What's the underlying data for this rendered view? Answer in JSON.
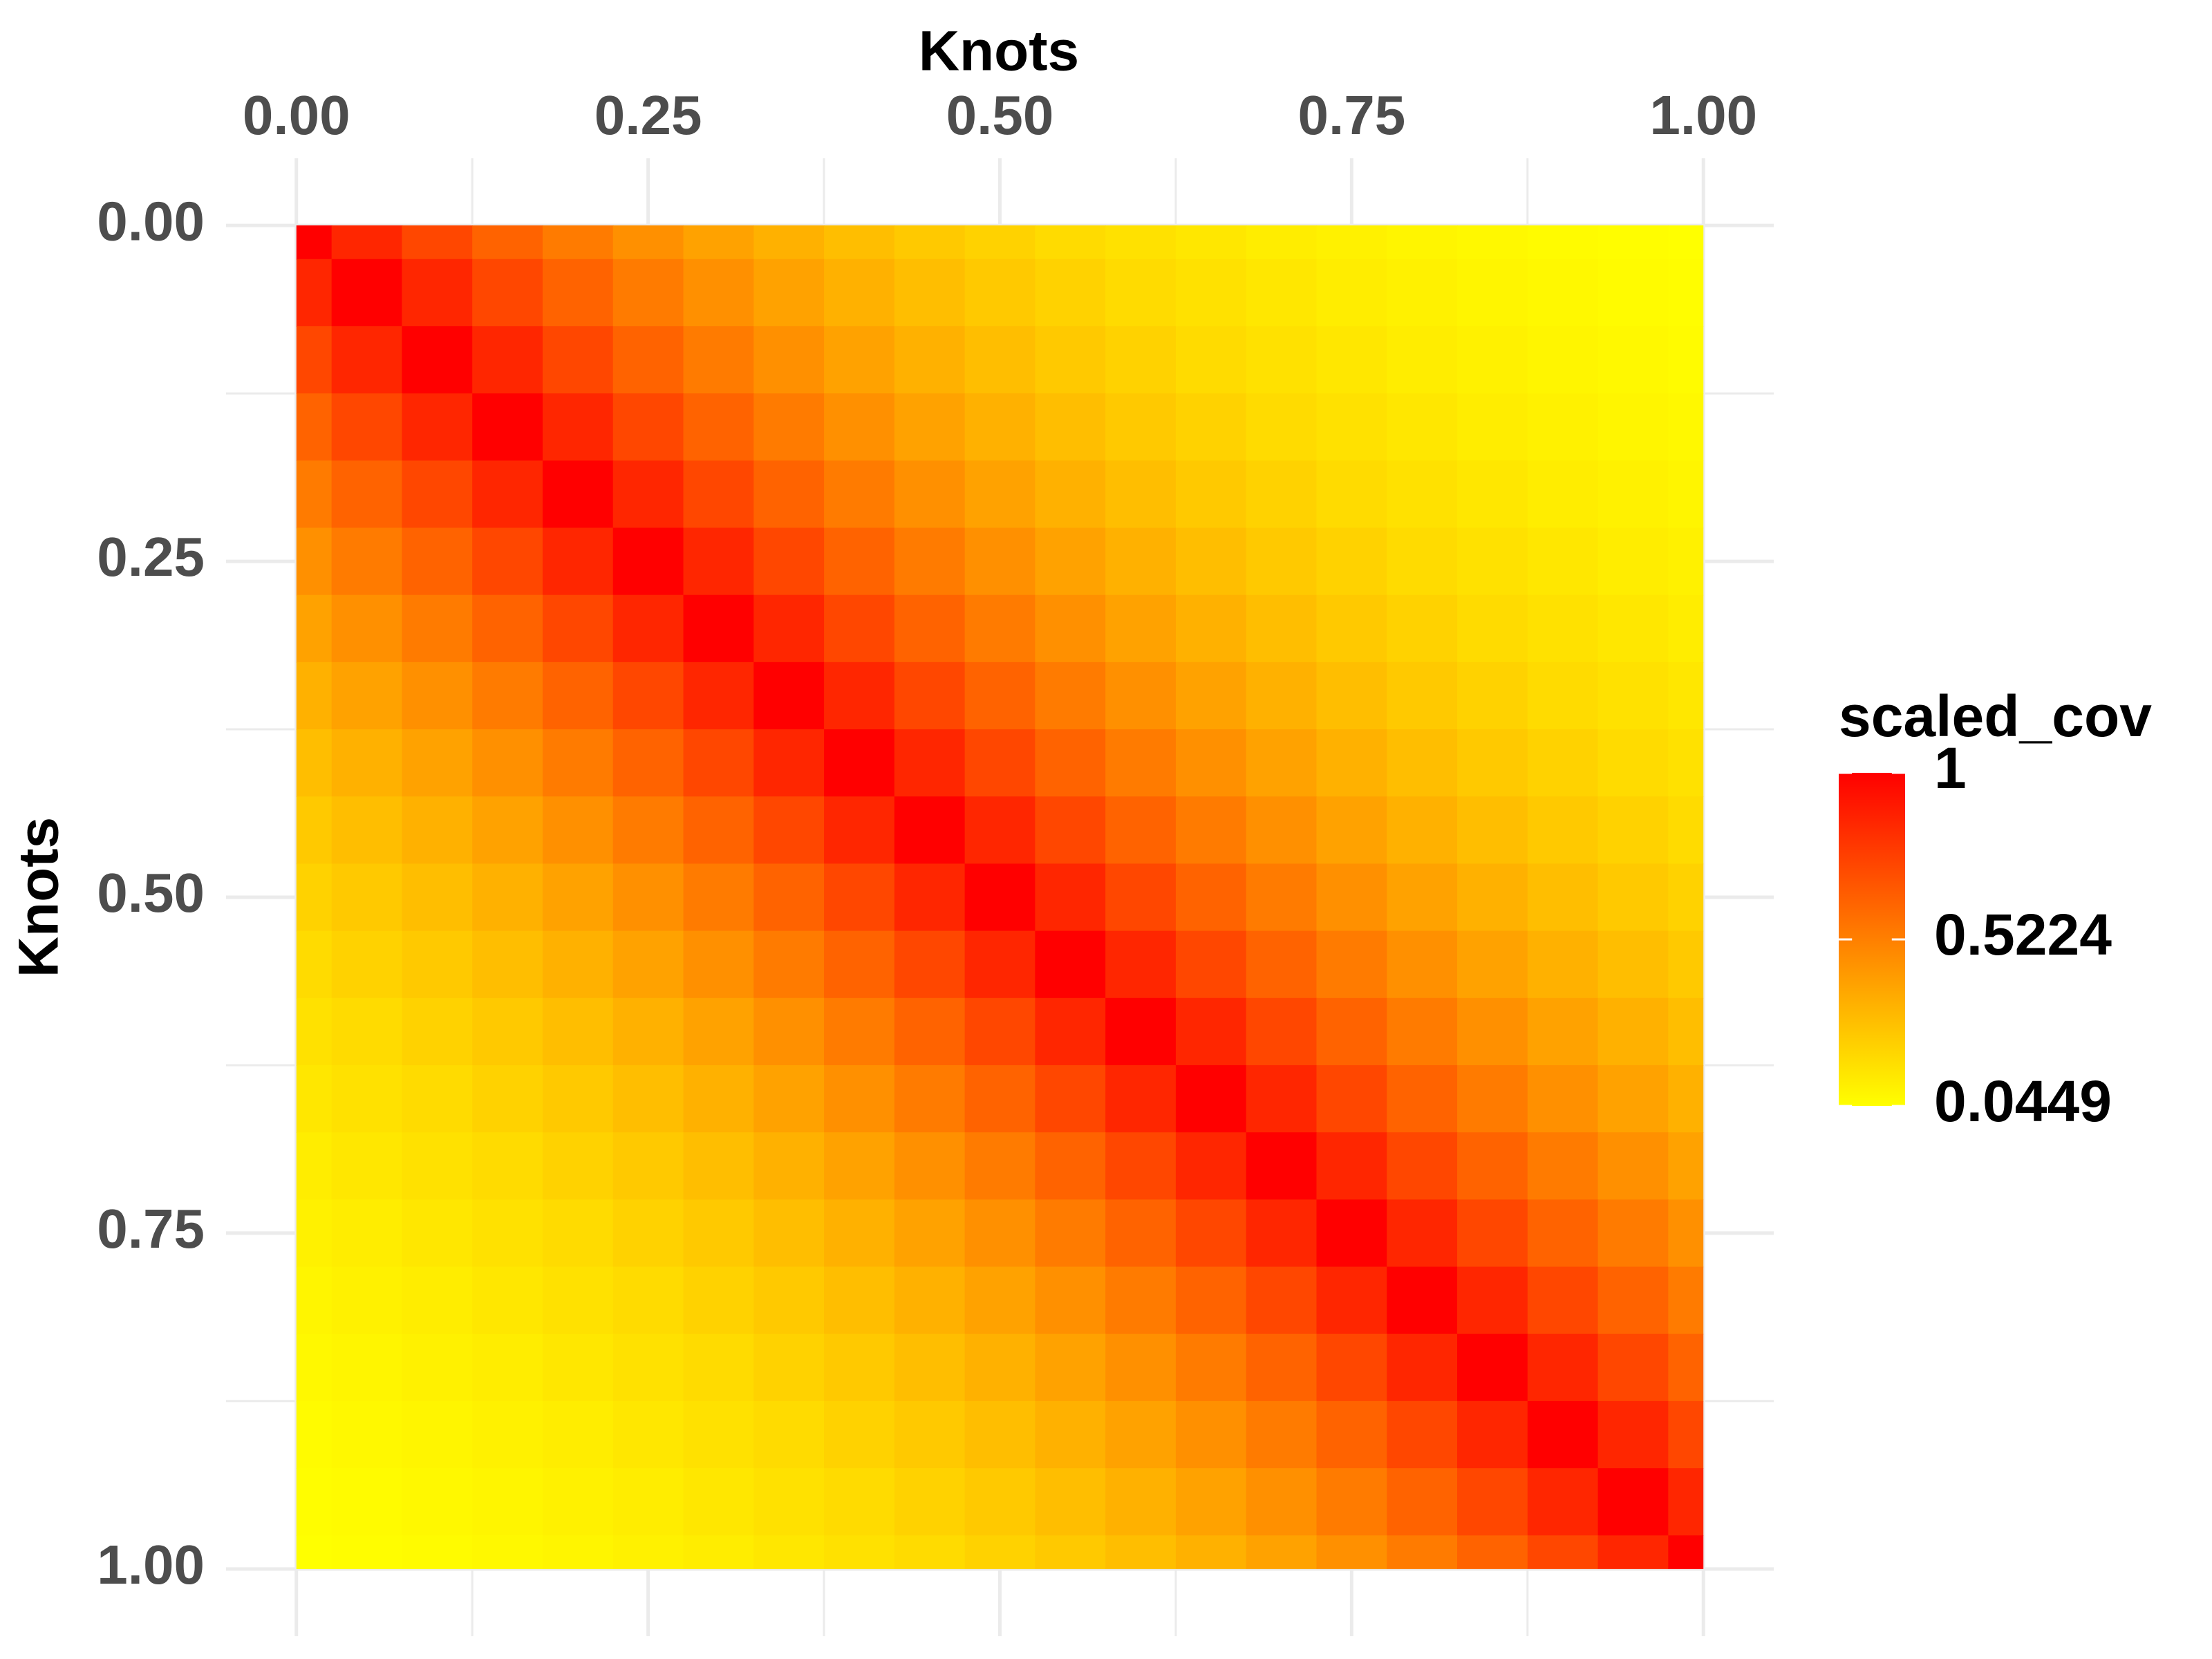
{
  "chart_data": {
    "type": "heatmap",
    "x_label": "Knots",
    "y_label": "Knots",
    "x_axis_position": "top",
    "y_reversed": true,
    "x": [
      0,
      0.05,
      0.1,
      0.15,
      0.2,
      0.25,
      0.3,
      0.35,
      0.4,
      0.45,
      0.5,
      0.55,
      0.6,
      0.65,
      0.7,
      0.75,
      0.8,
      0.85,
      0.9,
      0.95,
      1
    ],
    "y": [
      0,
      0.05,
      0.1,
      0.15,
      0.2,
      0.25,
      0.3,
      0.35,
      0.4,
      0.45,
      0.5,
      0.55,
      0.6,
      0.65,
      0.7,
      0.75,
      0.8,
      0.85,
      0.9,
      0.95,
      1
    ],
    "z": [
      [
        1,
        0.8563,
        0.7333,
        0.6279,
        0.5377,
        0.4604,
        0.3943,
        0.3376,
        0.2891,
        0.2476,
        0.212,
        0.1815,
        0.1555,
        0.1331,
        0.114,
        0.0976,
        0.0836,
        0.0716,
        0.0613,
        0.0525,
        0.0449
      ],
      [
        0.8563,
        1,
        0.8563,
        0.7333,
        0.6279,
        0.5377,
        0.4604,
        0.3943,
        0.3376,
        0.2891,
        0.2476,
        0.212,
        0.1815,
        0.1555,
        0.1331,
        0.114,
        0.0976,
        0.0836,
        0.0716,
        0.0613,
        0.0525
      ],
      [
        0.7333,
        0.8563,
        1,
        0.8563,
        0.7333,
        0.6279,
        0.5377,
        0.4604,
        0.3943,
        0.3376,
        0.2891,
        0.2476,
        0.212,
        0.1815,
        0.1555,
        0.1331,
        0.114,
        0.0976,
        0.0836,
        0.0716,
        0.0613
      ],
      [
        0.6279,
        0.7333,
        0.8563,
        1,
        0.8563,
        0.7333,
        0.6279,
        0.5377,
        0.4604,
        0.3943,
        0.3376,
        0.2891,
        0.2476,
        0.212,
        0.1815,
        0.1555,
        0.1331,
        0.114,
        0.0976,
        0.0836,
        0.0716
      ],
      [
        0.5377,
        0.6279,
        0.7333,
        0.8563,
        1,
        0.8563,
        0.7333,
        0.6279,
        0.5377,
        0.4604,
        0.3943,
        0.3376,
        0.2891,
        0.2476,
        0.212,
        0.1815,
        0.1555,
        0.1331,
        0.114,
        0.0976,
        0.0836
      ],
      [
        0.4604,
        0.5377,
        0.6279,
        0.7333,
        0.8563,
        1,
        0.8563,
        0.7333,
        0.6279,
        0.5377,
        0.4604,
        0.3943,
        0.3376,
        0.2891,
        0.2476,
        0.212,
        0.1815,
        0.1555,
        0.1331,
        0.114,
        0.0976
      ],
      [
        0.3943,
        0.4604,
        0.5377,
        0.6279,
        0.7333,
        0.8563,
        1,
        0.8563,
        0.7333,
        0.6279,
        0.5377,
        0.4604,
        0.3943,
        0.3376,
        0.2891,
        0.2476,
        0.212,
        0.1815,
        0.1555,
        0.1331,
        0.114
      ],
      [
        0.3376,
        0.3943,
        0.4604,
        0.5377,
        0.6279,
        0.7333,
        0.8563,
        1,
        0.8563,
        0.7333,
        0.6279,
        0.5377,
        0.4604,
        0.3943,
        0.3376,
        0.2891,
        0.2476,
        0.212,
        0.1815,
        0.1555,
        0.1331
      ],
      [
        0.2891,
        0.3376,
        0.3943,
        0.4604,
        0.5377,
        0.6279,
        0.7333,
        0.8563,
        1,
        0.8563,
        0.7333,
        0.6279,
        0.5377,
        0.4604,
        0.3943,
        0.3376,
        0.2891,
        0.2476,
        0.212,
        0.1815,
        0.1555
      ],
      [
        0.2476,
        0.2891,
        0.3376,
        0.3943,
        0.4604,
        0.5377,
        0.6279,
        0.7333,
        0.8563,
        1,
        0.8563,
        0.7333,
        0.6279,
        0.5377,
        0.4604,
        0.3943,
        0.3376,
        0.2891,
        0.2476,
        0.212,
        0.1815
      ],
      [
        0.212,
        0.2476,
        0.2891,
        0.3376,
        0.3943,
        0.4604,
        0.5377,
        0.6279,
        0.7333,
        0.8563,
        1,
        0.8563,
        0.7333,
        0.6279,
        0.5377,
        0.4604,
        0.3943,
        0.3376,
        0.2891,
        0.2476,
        0.212
      ],
      [
        0.1815,
        0.212,
        0.2476,
        0.2891,
        0.3376,
        0.3943,
        0.4604,
        0.5377,
        0.6279,
        0.7333,
        0.8563,
        1,
        0.8563,
        0.7333,
        0.6279,
        0.5377,
        0.4604,
        0.3943,
        0.3376,
        0.2891,
        0.2476
      ],
      [
        0.1555,
        0.1815,
        0.212,
        0.2476,
        0.2891,
        0.3376,
        0.3943,
        0.4604,
        0.5377,
        0.6279,
        0.7333,
        0.8563,
        1,
        0.8563,
        0.7333,
        0.6279,
        0.5377,
        0.4604,
        0.3943,
        0.3376,
        0.2891
      ],
      [
        0.1331,
        0.1555,
        0.1815,
        0.212,
        0.2476,
        0.2891,
        0.3376,
        0.3943,
        0.4604,
        0.5377,
        0.6279,
        0.7333,
        0.8563,
        1,
        0.8563,
        0.7333,
        0.6279,
        0.5377,
        0.4604,
        0.3943,
        0.3376
      ],
      [
        0.114,
        0.1331,
        0.1555,
        0.1815,
        0.212,
        0.2476,
        0.2891,
        0.3376,
        0.3943,
        0.4604,
        0.5377,
        0.6279,
        0.7333,
        0.8563,
        1,
        0.8563,
        0.7333,
        0.6279,
        0.5377,
        0.4604,
        0.3943
      ],
      [
        0.0976,
        0.114,
        0.1331,
        0.1555,
        0.1815,
        0.212,
        0.2476,
        0.2891,
        0.3376,
        0.3943,
        0.4604,
        0.5377,
        0.6279,
        0.7333,
        0.8563,
        1,
        0.8563,
        0.7333,
        0.6279,
        0.5377,
        0.4604
      ],
      [
        0.0836,
        0.0976,
        0.114,
        0.1331,
        0.1555,
        0.1815,
        0.212,
        0.2476,
        0.2891,
        0.3376,
        0.3943,
        0.4604,
        0.5377,
        0.6279,
        0.7333,
        0.8563,
        1,
        0.8563,
        0.7333,
        0.6279,
        0.5377
      ],
      [
        0.0716,
        0.0836,
        0.0976,
        0.114,
        0.1331,
        0.1555,
        0.1815,
        0.212,
        0.2476,
        0.2891,
        0.3376,
        0.3943,
        0.4604,
        0.5377,
        0.6279,
        0.7333,
        0.8563,
        1,
        0.8563,
        0.7333,
        0.6279
      ],
      [
        0.0613,
        0.0716,
        0.0836,
        0.0976,
        0.114,
        0.1331,
        0.1555,
        0.1815,
        0.212,
        0.2476,
        0.2891,
        0.3376,
        0.3943,
        0.4604,
        0.5377,
        0.6279,
        0.7333,
        0.8563,
        1,
        0.8563,
        0.7333
      ],
      [
        0.0525,
        0.0613,
        0.0716,
        0.0836,
        0.0976,
        0.114,
        0.1331,
        0.1555,
        0.1815,
        0.212,
        0.2476,
        0.2891,
        0.3376,
        0.3943,
        0.4604,
        0.5377,
        0.6279,
        0.7333,
        0.8563,
        1,
        0.8563
      ],
      [
        0.0449,
        0.0525,
        0.0613,
        0.0716,
        0.0836,
        0.0976,
        0.114,
        0.1331,
        0.1555,
        0.1815,
        0.212,
        0.2476,
        0.2891,
        0.3376,
        0.3943,
        0.4604,
        0.5377,
        0.6279,
        0.7333,
        0.8563,
        1
      ]
    ],
    "xlim": [
      -0.05,
      1.05
    ],
    "ylim": [
      -0.05,
      1.05
    ],
    "xticks": [
      {
        "value": 0,
        "label": "0.00"
      },
      {
        "value": 0.25,
        "label": "0.25"
      },
      {
        "value": 0.5,
        "label": "0.50"
      },
      {
        "value": 0.75,
        "label": "0.75"
      },
      {
        "value": 1,
        "label": "1.00"
      }
    ],
    "yticks": [
      {
        "value": 0,
        "label": "0.00"
      },
      {
        "value": 0.25,
        "label": "0.25"
      },
      {
        "value": 0.5,
        "label": "0.50"
      },
      {
        "value": 0.75,
        "label": "0.75"
      },
      {
        "value": 1,
        "label": "1.00"
      }
    ],
    "minor_ticks": [
      0.125,
      0.375,
      0.625,
      0.875
    ],
    "grid": true,
    "grid_color": "#ebebeb",
    "legend_title": "scaled_cov",
    "legend_position": "right",
    "fill_low": "#ffff00",
    "fill_high": "#ff0000",
    "fill_lim": [
      0.0449,
      1
    ],
    "fill_ticks": [
      1,
      0.5224,
      0.0449
    ]
  }
}
